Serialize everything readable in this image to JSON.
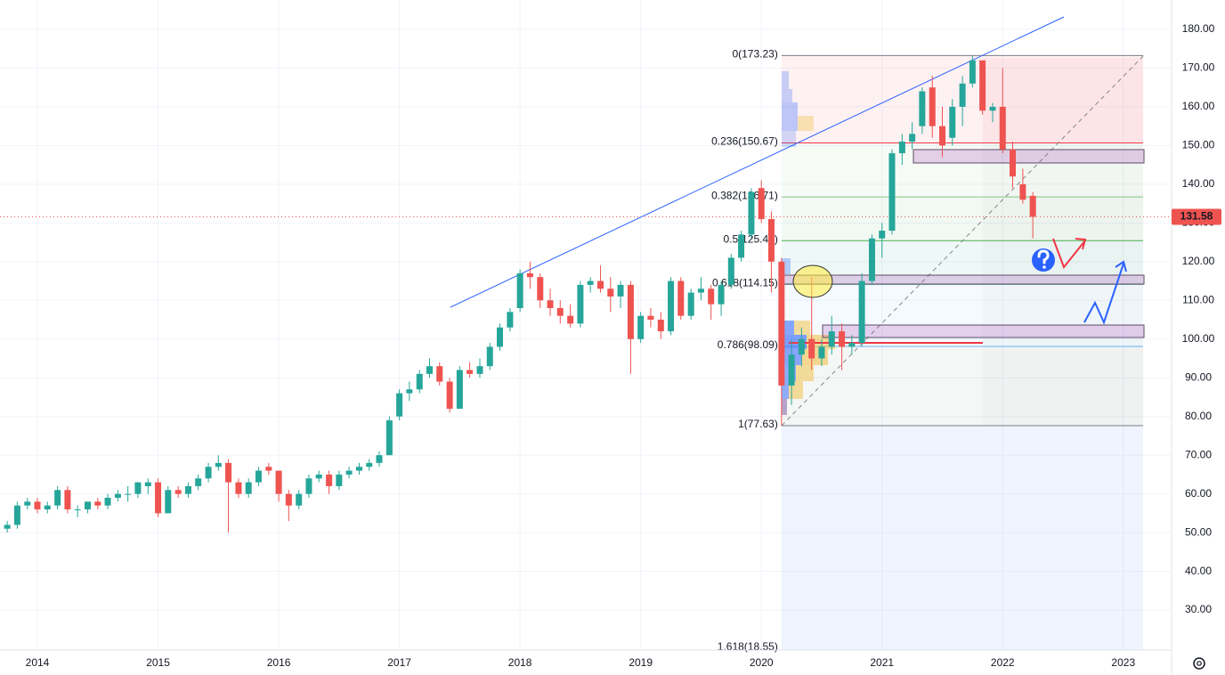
{
  "chart_data": {
    "type": "candlestick",
    "x": [
      2013.75,
      2013.833,
      2013.917,
      2014,
      2014.083,
      2014.167,
      2014.25,
      2014.333,
      2014.417,
      2014.5,
      2014.583,
      2014.667,
      2014.75,
      2014.833,
      2014.917,
      2015,
      2015.083,
      2015.167,
      2015.25,
      2015.333,
      2015.417,
      2015.5,
      2015.583,
      2015.667,
      2015.75,
      2015.833,
      2015.917,
      2016,
      2016.083,
      2016.167,
      2016.25,
      2016.333,
      2016.417,
      2016.5,
      2016.583,
      2016.667,
      2016.75,
      2016.833,
      2016.917,
      2017,
      2017.083,
      2017.167,
      2017.25,
      2017.333,
      2017.417,
      2017.5,
      2017.583,
      2017.667,
      2017.75,
      2017.833,
      2017.917,
      2018,
      2018.083,
      2018.167,
      2018.25,
      2018.333,
      2018.417,
      2018.5,
      2018.583,
      2018.667,
      2018.75,
      2018.833,
      2018.917,
      2019,
      2019.083,
      2019.167,
      2019.25,
      2019.333,
      2019.417,
      2019.5,
      2019.583,
      2019.667,
      2019.75,
      2019.833,
      2019.917,
      2020,
      2020.083,
      2020.167,
      2020.25,
      2020.333,
      2020.417,
      2020.5,
      2020.583,
      2020.667,
      2020.75,
      2020.833,
      2020.917,
      2021,
      2021.083,
      2021.167,
      2021.25,
      2021.333,
      2021.417,
      2021.5,
      2021.583,
      2021.667,
      2021.75,
      2021.833,
      2021.917,
      2022,
      2022.083,
      2022.167,
      2022.25
    ],
    "open": [
      51,
      52,
      57,
      58,
      56,
      57,
      61,
      56,
      56,
      58,
      57,
      59,
      60,
      60,
      62,
      63,
      55,
      61,
      60,
      62,
      64,
      67,
      68,
      63,
      60,
      63,
      67,
      66,
      60,
      57,
      60,
      64,
      65,
      62,
      65,
      66,
      67,
      68,
      70,
      80,
      86,
      87,
      91,
      93,
      89,
      82,
      92,
      91,
      93,
      98,
      103,
      108,
      117,
      116,
      110,
      108,
      106,
      104,
      114,
      115,
      113,
      111,
      114,
      100,
      106,
      105,
      102,
      115,
      106,
      112,
      113,
      109,
      114,
      121,
      127,
      139,
      131,
      120,
      88,
      96,
      100,
      95,
      98,
      102,
      98,
      99,
      115,
      126,
      128,
      148,
      151,
      155,
      165,
      155,
      152,
      160,
      166,
      172,
      159,
      160,
      149,
      140,
      137
    ],
    "high": [
      53,
      58,
      59,
      59,
      58,
      62,
      62,
      57,
      58,
      59,
      60,
      61,
      62,
      63,
      64,
      64,
      62,
      62,
      63,
      65,
      68,
      70,
      69,
      64,
      64,
      67,
      68,
      66,
      61,
      61,
      65,
      66,
      66,
      66,
      67,
      68,
      69,
      71,
      80,
      87,
      89,
      92,
      95,
      94,
      90,
      93,
      94,
      95,
      99,
      104,
      108,
      118,
      120,
      117,
      113,
      110,
      109,
      115,
      116,
      119,
      116,
      115,
      115,
      107,
      108,
      107,
      116,
      116,
      113,
      116,
      114,
      115,
      122,
      128,
      139,
      141,
      133,
      121,
      100,
      103,
      116,
      100,
      106,
      104,
      101,
      117,
      127,
      130,
      149,
      153,
      156,
      165,
      168,
      160,
      162,
      168,
      173.23,
      172,
      161,
      170,
      151,
      144,
      138
    ],
    "low": [
      50,
      51,
      56,
      55,
      55,
      56,
      55,
      54,
      55,
      56,
      56,
      58,
      58,
      59,
      60,
      54,
      55,
      59,
      59,
      61,
      63,
      66,
      50,
      59,
      59,
      62,
      65,
      58,
      53,
      56,
      59,
      63,
      60,
      61,
      64,
      65,
      66,
      67,
      70,
      79,
      84,
      86,
      90,
      88,
      81,
      82,
      90,
      90,
      92,
      97,
      102,
      107,
      113,
      108,
      106,
      104,
      103,
      103,
      112,
      112,
      107,
      108,
      91,
      99,
      103,
      100,
      101,
      105,
      105,
      110,
      105,
      106,
      113,
      120,
      126,
      130,
      112,
      77.63,
      83,
      93,
      92,
      93,
      96,
      92,
      96,
      98,
      114,
      121,
      127,
      145,
      149,
      153,
      152,
      147,
      150,
      155,
      165,
      158,
      156,
      148,
      139,
      135,
      126
    ],
    "close": [
      52,
      57,
      58,
      56,
      57,
      61,
      56,
      56,
      58,
      57,
      59,
      60,
      60,
      63,
      63,
      55,
      61,
      60,
      62,
      64,
      67,
      68,
      63,
      60,
      63,
      66,
      66,
      60,
      57,
      60,
      64,
      65,
      62,
      65,
      66,
      67,
      68,
      70,
      79,
      86,
      87,
      91,
      93,
      89,
      82,
      92,
      91,
      93,
      98,
      103,
      107,
      117,
      116,
      110,
      108,
      106,
      104,
      114,
      115,
      113,
      111,
      114,
      100,
      106,
      105,
      102,
      115,
      106,
      112,
      113,
      109,
      114,
      121,
      127,
      138,
      131,
      120,
      88,
      96,
      100,
      95,
      98,
      102,
      98,
      99,
      115,
      126,
      128,
      148,
      151,
      153,
      164,
      155,
      150,
      160,
      166,
      172,
      159,
      160,
      149,
      142,
      136,
      131.58
    ],
    "up_color": "#26a69a",
    "down_color": "#ef5350",
    "xlim": [
      2013.69,
      2023.4
    ],
    "xticks": [
      2014,
      2015,
      2016,
      2017,
      2018,
      2019,
      2020,
      2021,
      2022,
      2023
    ],
    "ylim": [
      19.66,
      187.59
    ],
    "yticks": [
      {
        "value": 30,
        "label": "30.00"
      },
      {
        "value": 40,
        "label": "40.00"
      },
      {
        "value": 50,
        "label": "50.00"
      },
      {
        "value": 60,
        "label": "60.00"
      },
      {
        "value": 70,
        "label": "70.00"
      },
      {
        "value": 80,
        "label": "80.00"
      },
      {
        "value": 90,
        "label": "90.00"
      },
      {
        "value": 100,
        "label": "100.00"
      },
      {
        "value": 110,
        "label": "110.00"
      },
      {
        "value": 120,
        "label": "120.00"
      },
      {
        "value": 130,
        "label": "130.00"
      },
      {
        "value": 140,
        "label": "140.00"
      },
      {
        "value": 150,
        "label": "150.00"
      },
      {
        "value": 160,
        "label": "160.00"
      },
      {
        "value": 170,
        "label": "170.00"
      },
      {
        "value": 180,
        "label": "180.00"
      }
    ],
    "grid": true,
    "last_price_line": true,
    "fibonacci": {
      "levels": [
        {
          "label": "0(173.23)",
          "value": 173.23,
          "color": "#787b86"
        },
        {
          "label": "0.236(150.67)",
          "value": 150.67,
          "color": "#f23645"
        },
        {
          "label": "0.382(136.71)",
          "value": 136.71,
          "color": "#81c784"
        },
        {
          "label": "0.5(125.43)",
          "value": 125.43,
          "color": "#4caf50"
        },
        {
          "label": "0.618(114.15)",
          "value": 114.15,
          "color": "#089981"
        },
        {
          "label": "0.786(98.09)",
          "value": 98.09,
          "color": "#64b5f6"
        },
        {
          "label": "1(77.63)",
          "value": 77.63,
          "color": "#787b86"
        },
        {
          "label": "1.618(18.55)",
          "value": 18.55,
          "color": "#2962ff"
        }
      ]
    }
  }
}
